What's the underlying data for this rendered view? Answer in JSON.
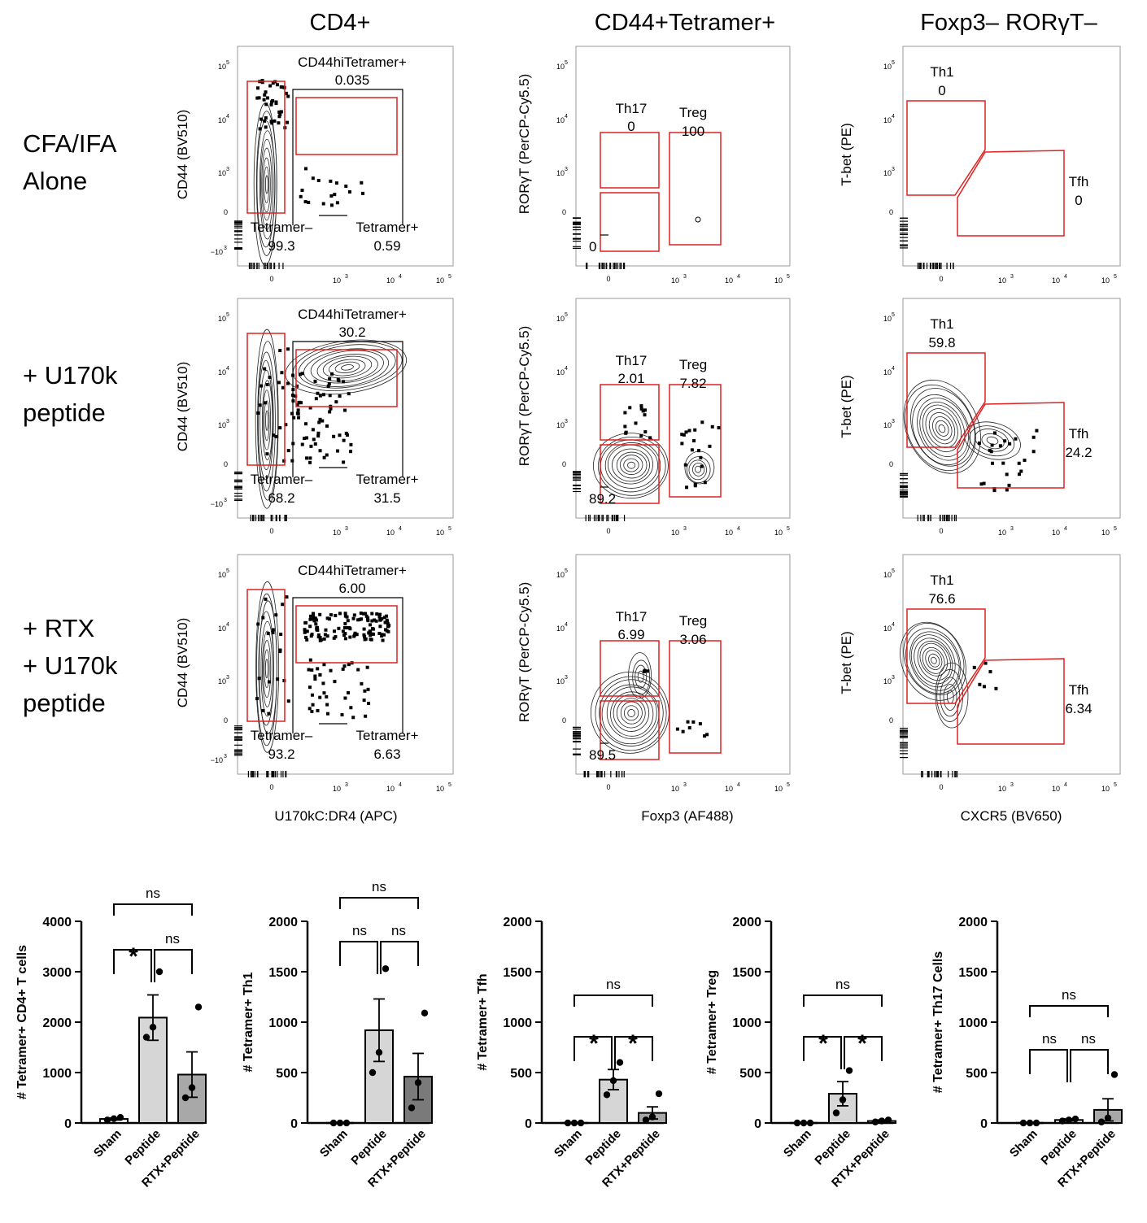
{
  "columns": [
    "CD4+",
    "CD44+Tetramer+",
    "Foxp3– RORγT–"
  ],
  "rows": [
    [
      "CFA/IFA",
      "Alone"
    ],
    [
      "+ U170k",
      "peptide"
    ],
    [
      "+ RTX",
      "+ U170k",
      "peptide"
    ]
  ],
  "flow_axes": {
    "col1": {
      "x": "U170kC:DR4 (APC)",
      "y": "CD44 (BV510)"
    },
    "col2": {
      "x": "Foxp3 (AF488)",
      "y": "RORγT (PerCP-Cy5.5)"
    },
    "col3": {
      "x": "CXCR5 (BV650)",
      "y": "T-bet (PE)"
    }
  },
  "flow_ticks": {
    "x": [
      "0",
      "10",
      "3",
      "10",
      "4",
      "10",
      "5"
    ],
    "y": [
      "10",
      "5",
      "10",
      "4",
      "10",
      "3",
      "0",
      "−10",
      "3"
    ]
  },
  "gate_labels": {
    "cd44hi": "CD44hiTetramer+",
    "tetneg": "Tetramer–",
    "tetpos": "Tetramer+",
    "th17": "Th17",
    "treg": "Treg",
    "th1": "Th1",
    "tfh": "Tfh"
  },
  "flow_values": [
    {
      "cd44hi": "0.035",
      "tetneg": "99.3",
      "tetpos": "0.59",
      "th17": "0",
      "treg": "100",
      "dn": "0",
      "th1": "0",
      "tfh": "0"
    },
    {
      "cd44hi": "30.2",
      "tetneg": "68.2",
      "tetpos": "31.5",
      "th17": "2.01",
      "treg": "7.82",
      "dn": "89.2",
      "th1": "59.8",
      "tfh": "24.2"
    },
    {
      "cd44hi": "6.00",
      "tetneg": "93.2",
      "tetpos": "6.63",
      "th17": "6.99",
      "treg": "3.06",
      "dn": "89.5",
      "th1": "76.6",
      "tfh": "6.34"
    }
  ],
  "chart_data": [
    {
      "type": "bar",
      "ylabel": "# Tetramer+ CD4+ T cells",
      "categories": [
        "Sham",
        "Peptide",
        "RTX+Peptide"
      ],
      "values": [
        80,
        2090,
        960
      ],
      "errors": [
        20,
        450,
        450
      ],
      "ylim": [
        0,
        4000
      ],
      "yticks": [
        "0",
        "1000",
        "2000",
        "3000",
        "4000"
      ],
      "points": [
        [
          60,
          85,
          110
        ],
        [
          1700,
          1900,
          3000
        ],
        [
          500,
          700,
          2300
        ]
      ],
      "sig": {
        "a": "*",
        "b": "ns",
        "top": "ns"
      },
      "bar_colors": [
        "#e6e6e6",
        "#d6d6d6",
        "#a8a8a8"
      ]
    },
    {
      "type": "bar",
      "ylabel": "# Tetramer+ Th1",
      "categories": [
        "Sham",
        "Peptide",
        "RTX+Peptide"
      ],
      "values": [
        0,
        920,
        460
      ],
      "errors": [
        0,
        310,
        230
      ],
      "ylim": [
        0,
        2000
      ],
      "yticks": [
        "0",
        "500",
        "1000",
        "1500",
        "2000"
      ],
      "points": [
        [
          0,
          0,
          0
        ],
        [
          500,
          700,
          1530
        ],
        [
          150,
          400,
          1090
        ]
      ],
      "sig": {
        "a": "ns",
        "b": "ns",
        "top": "ns"
      },
      "bar_colors": [
        "#e6e6e6",
        "#d6d6d6",
        "#7a7a7a"
      ]
    },
    {
      "type": "bar",
      "ylabel": "# Tetramer+ Tfh",
      "categories": [
        "Sham",
        "Peptide",
        "RTX+Peptide"
      ],
      "values": [
        0,
        430,
        100
      ],
      "errors": [
        0,
        100,
        60
      ],
      "ylim": [
        0,
        2000
      ],
      "yticks": [
        "0",
        "500",
        "1000",
        "1500",
        "2000"
      ],
      "points": [
        [
          0,
          0,
          0
        ],
        [
          280,
          420,
          600
        ],
        [
          30,
          60,
          290
        ]
      ],
      "sig": {
        "a": "*",
        "b": "*",
        "top": "ns"
      },
      "bar_colors": [
        "#e6e6e6",
        "#d6d6d6",
        "#a8a8a8"
      ]
    },
    {
      "type": "bar",
      "ylabel": "# Tetramer+ Treg",
      "categories": [
        "Sham",
        "Peptide",
        "RTX+Peptide"
      ],
      "values": [
        0,
        290,
        20
      ],
      "errors": [
        0,
        120,
        10
      ],
      "ylim": [
        0,
        2000
      ],
      "yticks": [
        "0",
        "500",
        "1000",
        "1500",
        "2000"
      ],
      "points": [
        [
          0,
          0,
          0
        ],
        [
          100,
          230,
          520
        ],
        [
          10,
          20,
          30
        ]
      ],
      "sig": {
        "a": "*",
        "b": "*",
        "top": "ns"
      },
      "bar_colors": [
        "#e6e6e6",
        "#d6d6d6",
        "#a8a8a8"
      ]
    },
    {
      "type": "bar",
      "ylabel": "# Tetramer+ Th17 Cells",
      "categories": [
        "Sham",
        "Peptide",
        "RTX+Peptide"
      ],
      "values": [
        0,
        30,
        130
      ],
      "errors": [
        0,
        10,
        110
      ],
      "ylim": [
        0,
        2000
      ],
      "yticks": [
        "0",
        "500",
        "1000",
        "1500",
        "2000"
      ],
      "points": [
        [
          0,
          0,
          0
        ],
        [
          20,
          30,
          40
        ],
        [
          10,
          50,
          480
        ]
      ],
      "sig": {
        "a": "ns",
        "b": "ns",
        "top": "ns"
      },
      "bar_colors": [
        "#e6e6e6",
        "#d6d6d6",
        "#a8a8a8"
      ]
    }
  ]
}
